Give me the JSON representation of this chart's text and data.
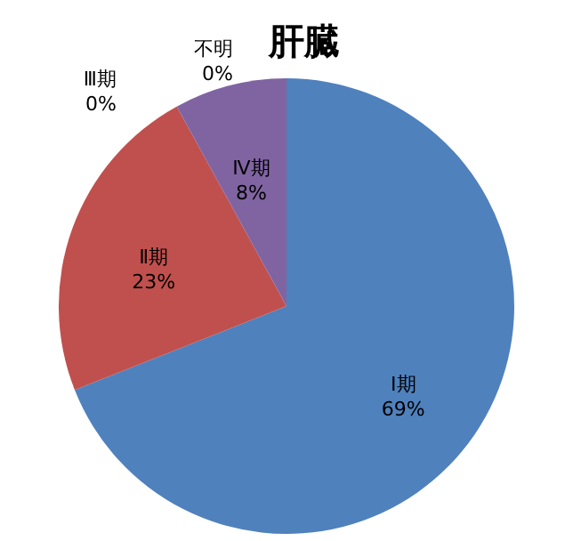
{
  "chart_data": {
    "type": "pie",
    "title": "肝臓",
    "categories": [
      "Ⅰ期",
      "Ⅱ期",
      "Ⅲ期",
      "Ⅳ期",
      "不明"
    ],
    "values": [
      69,
      23,
      0,
      8,
      0
    ],
    "value_labels": [
      "69%",
      "23%",
      "0%",
      "8%",
      "0%"
    ],
    "colors": [
      "#4f81bd",
      "#c0504d",
      "#9bbb59",
      "#8064a2",
      "#4bacc6"
    ],
    "legend": false
  }
}
